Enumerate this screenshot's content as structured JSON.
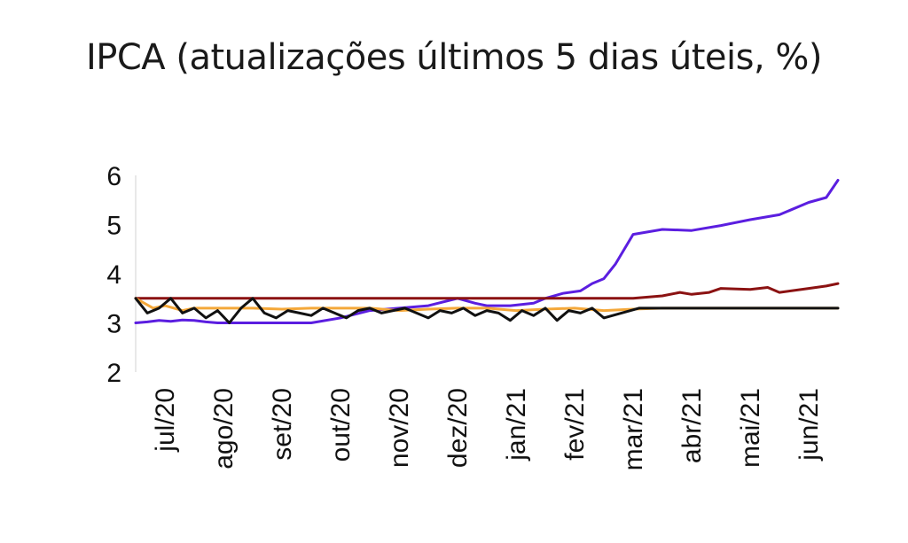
{
  "chart_data": {
    "type": "line",
    "title": "IPCA (atualizações últimos 5 dias úteis, %)",
    "xlabel": "",
    "ylabel": "",
    "ylim": [
      2,
      6
    ],
    "yticks": [
      "2",
      "3",
      "4",
      "5",
      "6"
    ],
    "categories": [
      "jul/20",
      "ago/20",
      "set/20",
      "out/20",
      "nov/20",
      "dez/20",
      "jan/21",
      "fev/21",
      "mar/21",
      "abr/21",
      "mai/21",
      "jun/21"
    ],
    "grid": false,
    "legend": "none",
    "series": [
      {
        "color": "#5b1ee0",
        "x": [
          0,
          0.2,
          0.4,
          0.6,
          0.8,
          1.0,
          1.2,
          1.4,
          1.6,
          2.0,
          2.5,
          3.0,
          3.5,
          4.0,
          4.5,
          5.0,
          5.5,
          5.8,
          6.0,
          6.4,
          6.8,
          7.0,
          7.3,
          7.6,
          7.8,
          8.0,
          8.2,
          8.5,
          9.0,
          9.5,
          10.0,
          10.5,
          11.0,
          11.5,
          11.8,
          12.0
        ],
        "values": [
          3.0,
          3.02,
          3.05,
          3.03,
          3.06,
          3.05,
          3.02,
          3.0,
          3.0,
          3.0,
          3.0,
          3.0,
          3.1,
          3.25,
          3.3,
          3.35,
          3.5,
          3.4,
          3.35,
          3.35,
          3.4,
          3.5,
          3.6,
          3.65,
          3.8,
          3.9,
          4.2,
          4.8,
          4.9,
          4.88,
          4.98,
          5.1,
          5.2,
          5.45,
          5.55,
          5.9
        ]
      },
      {
        "color": "#8b1212",
        "x": [
          0,
          0.5,
          1.0,
          1.5,
          2.0,
          2.5,
          3.0,
          3.5,
          4.0,
          4.5,
          5.0,
          5.5,
          6.0,
          6.5,
          7.0,
          7.5,
          8.0,
          8.5,
          9.0,
          9.3,
          9.5,
          9.8,
          10.0,
          10.5,
          10.8,
          11.0,
          11.5,
          11.8,
          12.0
        ],
        "values": [
          3.5,
          3.5,
          3.5,
          3.5,
          3.5,
          3.5,
          3.5,
          3.5,
          3.5,
          3.5,
          3.5,
          3.5,
          3.5,
          3.5,
          3.5,
          3.5,
          3.5,
          3.5,
          3.55,
          3.62,
          3.58,
          3.62,
          3.7,
          3.68,
          3.72,
          3.62,
          3.7,
          3.75,
          3.8
        ]
      },
      {
        "color": "#f4a83a",
        "x": [
          0,
          0.3,
          0.5,
          0.8,
          1.0,
          1.5,
          2.0,
          2.5,
          3.0,
          3.5,
          4.0,
          4.5,
          5.0,
          5.5,
          6.0,
          6.5,
          7.0,
          7.5,
          8.0,
          8.5,
          9.0,
          10.0,
          11.0,
          12.0
        ],
        "values": [
          3.5,
          3.3,
          3.35,
          3.25,
          3.3,
          3.3,
          3.3,
          3.28,
          3.3,
          3.3,
          3.3,
          3.25,
          3.28,
          3.3,
          3.3,
          3.25,
          3.28,
          3.3,
          3.25,
          3.28,
          3.3,
          3.3,
          3.3,
          3.3
        ]
      },
      {
        "color": "#111111",
        "x": [
          0,
          0.2,
          0.4,
          0.6,
          0.8,
          1.0,
          1.2,
          1.4,
          1.6,
          1.8,
          2.0,
          2.2,
          2.4,
          2.6,
          2.8,
          3.0,
          3.2,
          3.4,
          3.6,
          3.8,
          4.0,
          4.2,
          4.4,
          4.6,
          4.8,
          5.0,
          5.2,
          5.4,
          5.6,
          5.8,
          6.0,
          6.2,
          6.4,
          6.6,
          6.8,
          7.0,
          7.2,
          7.4,
          7.6,
          7.8,
          8.0,
          8.3,
          8.6,
          9.0,
          10.0,
          11.0,
          12.0
        ],
        "values": [
          3.5,
          3.2,
          3.3,
          3.5,
          3.2,
          3.3,
          3.1,
          3.25,
          3.0,
          3.3,
          3.5,
          3.2,
          3.1,
          3.25,
          3.2,
          3.15,
          3.3,
          3.2,
          3.1,
          3.25,
          3.3,
          3.2,
          3.25,
          3.3,
          3.2,
          3.1,
          3.25,
          3.2,
          3.3,
          3.15,
          3.25,
          3.2,
          3.05,
          3.25,
          3.15,
          3.3,
          3.05,
          3.25,
          3.2,
          3.3,
          3.1,
          3.2,
          3.3,
          3.3,
          3.3,
          3.3,
          3.3
        ]
      }
    ]
  }
}
